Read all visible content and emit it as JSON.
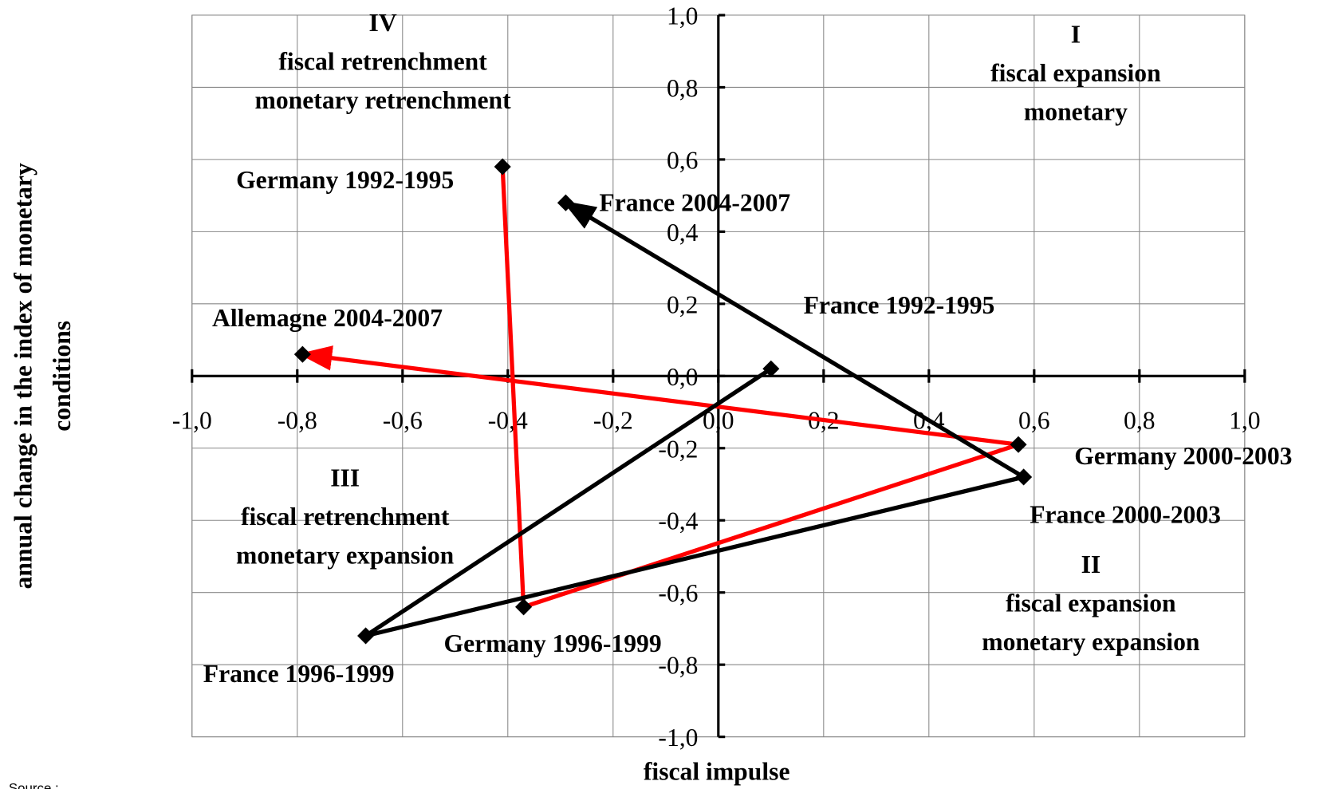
{
  "chart_data": {
    "type": "scatter",
    "x_label": "fiscal impulse",
    "y_label": [
      "annual change in the index of monetary",
      "conditions"
    ],
    "source": "Source :",
    "xlim": [
      -1,
      1
    ],
    "ylim": [
      -1,
      1
    ],
    "xticks": [
      {
        "value": -1,
        "label": "-1,0"
      },
      {
        "value": -0.8,
        "label": "-0,8"
      },
      {
        "value": -0.6,
        "label": "-0,6"
      },
      {
        "value": -0.4,
        "label": "-0,4"
      },
      {
        "value": -0.2,
        "label": "-0,2"
      },
      {
        "value": 0,
        "label": "0,0"
      },
      {
        "value": 0.2,
        "label": "0,2"
      },
      {
        "value": 0.4,
        "label": "0,4"
      },
      {
        "value": 0.6,
        "label": "0,6"
      },
      {
        "value": 0.8,
        "label": "0,8"
      },
      {
        "value": 1,
        "label": "1,0"
      }
    ],
    "yticks": [
      {
        "value": -1,
        "label": "-1,0"
      },
      {
        "value": -0.8,
        "label": "-0,8"
      },
      {
        "value": -0.6,
        "label": "-0,6"
      },
      {
        "value": -0.4,
        "label": "-0,4"
      },
      {
        "value": -0.2,
        "label": "-0,2"
      },
      {
        "value": 0,
        "label": "0,0"
      },
      {
        "value": 0.2,
        "label": "0,2"
      },
      {
        "value": 0.4,
        "label": "0,4"
      },
      {
        "value": 0.6,
        "label": "0,6"
      },
      {
        "value": 0.8,
        "label": "0,8"
      },
      {
        "value": 1,
        "label": "1,0"
      }
    ],
    "grid": true,
    "series": [
      {
        "name": "Germany",
        "color": "#ff0000",
        "marker_color": "#000000",
        "point_labels": [
          "Germany 1992-1995",
          "Germany 1996-1999",
          "Germany  2000-2003",
          "Allemagne 2004-2007"
        ],
        "x": [
          -0.41,
          -0.37,
          0.57,
          -0.79
        ],
        "y": [
          0.58,
          -0.64,
          -0.19,
          0.06
        ]
      },
      {
        "name": "France",
        "color": "#000000",
        "marker_color": "#000000",
        "point_labels": [
          "France 1992-1995",
          "France 1996-1999",
          "France 2000-2003",
          "France 2004-2007"
        ],
        "x": [
          0.1,
          -0.67,
          0.58,
          -0.29
        ],
        "y": [
          0.02,
          -0.72,
          -0.28,
          0.48
        ]
      }
    ],
    "annotations": [
      [
        "IV",
        "fiscal retrenchment",
        "monetary retrenchment"
      ],
      [
        "I",
        "fiscal expansion",
        "monetary"
      ],
      [
        "III",
        "fiscal retrenchment",
        "monetary expansion"
      ],
      [
        "II",
        "fiscal expansion",
        "monetary expansion"
      ]
    ]
  }
}
